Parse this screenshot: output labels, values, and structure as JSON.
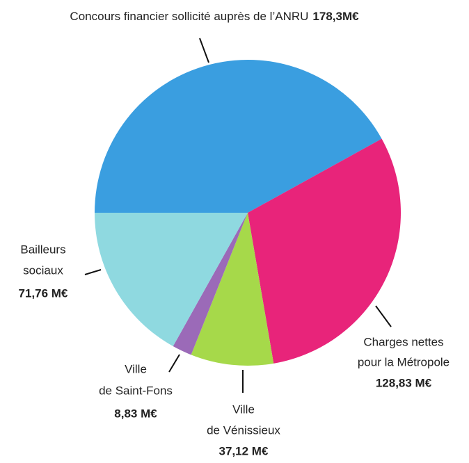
{
  "chart_data": {
    "type": "pie",
    "categories": [
      [
        "Concours financier sollicité auprès de l’ANRU"
      ],
      [
        "Charges nettes",
        "pour la Métropole"
      ],
      [
        "Ville",
        "de Vénissieux"
      ],
      [
        "Ville",
        "de Saint-Fons"
      ],
      [
        "Bailleurs",
        "sociaux"
      ]
    ],
    "values": [
      178.3,
      128.83,
      37.12,
      8.83,
      71.76
    ],
    "value_labels": [
      "178,3M€",
      "128,83 M€",
      "37,12 M€",
      "8,83 M€",
      "71,76 M€"
    ],
    "colors": [
      "#3a9ee0",
      "#e8247a",
      "#a6d94a",
      "#9b6ab8",
      "#8fd9e0"
    ]
  }
}
